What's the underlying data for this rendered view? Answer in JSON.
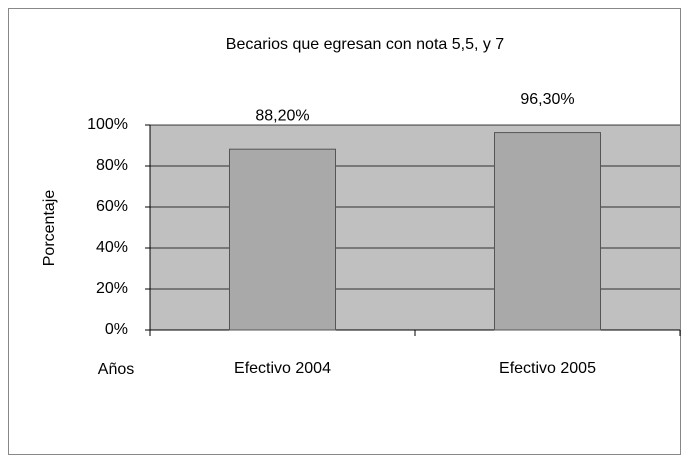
{
  "chart_data": {
    "type": "bar",
    "title": "Becarios que egresan con nota 5,5, y 7",
    "x_label": "Años",
    "y_label": "Porcentaje",
    "categories": [
      "Efectivo 2004",
      "Efectivo 2005"
    ],
    "values": [
      88.2,
      96.3
    ],
    "value_labels": [
      "88,20%",
      "96,30%"
    ],
    "color": "#a9a9a9",
    "ylim": [
      0,
      100
    ],
    "yticks": [
      {
        "value": 0,
        "label": "0%"
      },
      {
        "value": 20,
        "label": "20%"
      },
      {
        "value": 40,
        "label": "40%"
      },
      {
        "value": 60,
        "label": "60%"
      },
      {
        "value": 80,
        "label": "80%"
      },
      {
        "value": 100,
        "label": "100%"
      }
    ],
    "grid": true
  }
}
